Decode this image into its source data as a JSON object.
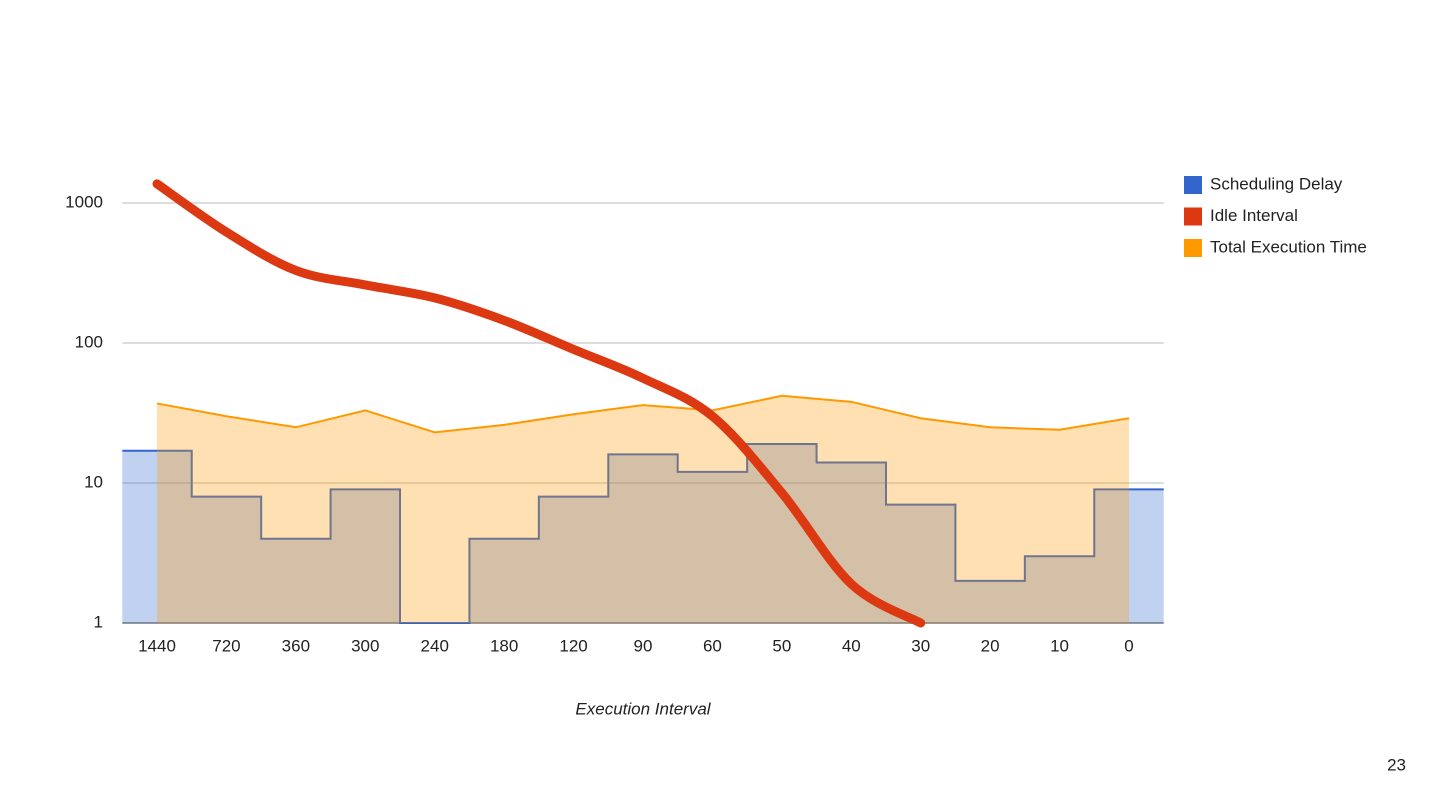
{
  "chart_data": {
    "type": "combo",
    "x_label": "Execution Interval",
    "categories": [
      "1440",
      "720",
      "360",
      "300",
      "240",
      "180",
      "120",
      "90",
      "60",
      "50",
      "40",
      "30",
      "20",
      "10",
      "0"
    ],
    "series": [
      {
        "name": "Scheduling Delay",
        "color": "#3366cc",
        "style": "stepped-area",
        "values": [
          17,
          8,
          4,
          9,
          1,
          4,
          8,
          16,
          12,
          19,
          14,
          7,
          2,
          3,
          9
        ]
      },
      {
        "name": "Idle Interval",
        "color": "#dc3912",
        "style": "line",
        "values": [
          1370,
          620,
          330,
          260,
          210,
          145,
          90,
          56,
          30,
          8.5,
          1.9,
          1,
          null,
          null,
          null
        ]
      },
      {
        "name": "Total Execution Time",
        "color": "#ff9900",
        "style": "area",
        "values": [
          37,
          30,
          25,
          33,
          23,
          26,
          31,
          36,
          33,
          42,
          38,
          29,
          25,
          24,
          29
        ]
      }
    ],
    "yscale": "log",
    "ylim": [
      1,
      2000
    ],
    "yticks": [
      1,
      10,
      100,
      1000
    ],
    "grid": true,
    "legend": "right",
    "page_number": "23"
  }
}
